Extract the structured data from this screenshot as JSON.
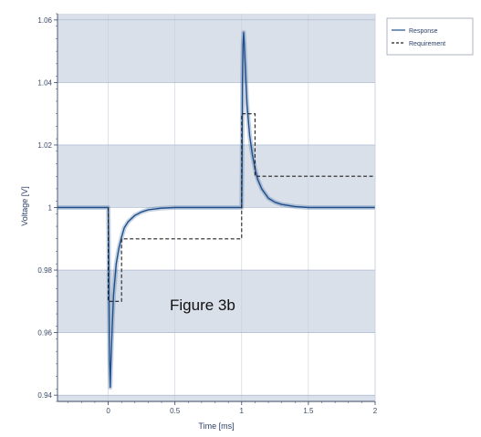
{
  "chart_data": {
    "type": "line",
    "xlabel": "Time [ms]",
    "ylabel": "Voltage [V]",
    "xlim": [
      -0.38,
      2.0
    ],
    "ylim": [
      0.938,
      1.062
    ],
    "x_ticks": [
      0,
      0.5,
      1,
      1.5,
      2
    ],
    "x_tick_labels": [
      "0",
      "0.5",
      "1",
      "1.5",
      "2"
    ],
    "y_ticks": [
      0.94,
      0.96,
      0.98,
      1,
      1.02,
      1.04,
      1.06
    ],
    "y_tick_labels": [
      "0.94",
      "0.96",
      "0.98",
      "1",
      "1.02",
      "1.04",
      "1.06"
    ],
    "shaded_bands": [
      [
        0.938,
        0.94
      ],
      [
        0.96,
        0.98
      ],
      [
        1.0,
        1.02
      ],
      [
        1.04,
        1.062
      ]
    ],
    "grid": true,
    "legend_position": "top-right",
    "annotation": "Figure 3b",
    "series": [
      {
        "name": "Response",
        "style": "solid",
        "color": "#1f4e8c",
        "x": [
          -0.38,
          -0.2,
          0.0,
          0.003,
          0.006,
          0.01,
          0.015,
          0.02,
          0.03,
          0.04,
          0.06,
          0.08,
          0.1,
          0.12,
          0.15,
          0.2,
          0.25,
          0.3,
          0.4,
          0.5,
          0.6,
          0.8,
          1.0,
          1.003,
          1.006,
          1.01,
          1.015,
          1.02,
          1.03,
          1.04,
          1.06,
          1.08,
          1.1,
          1.12,
          1.15,
          1.2,
          1.25,
          1.3,
          1.4,
          1.5,
          1.7,
          2.0
        ],
        "y": [
          1.0,
          1.0,
          1.0,
          0.99,
          0.97,
          0.951,
          0.9425,
          0.95,
          0.962,
          0.972,
          0.982,
          0.987,
          0.9905,
          0.9935,
          0.9955,
          0.9975,
          0.9986,
          0.9993,
          0.9998,
          1.0,
          1.0,
          1.0,
          1.0,
          1.015,
          1.04,
          1.052,
          1.056,
          1.052,
          1.042,
          1.033,
          1.023,
          1.017,
          1.0125,
          1.009,
          1.006,
          1.003,
          1.0017,
          1.001,
          1.0003,
          1.0,
          1.0,
          1.0
        ]
      },
      {
        "name": "Requirement",
        "style": "dashed",
        "color": "#222222",
        "x": [
          0.0,
          0.0,
          0.1,
          0.1,
          1.0,
          1.0,
          1.1,
          1.1,
          2.0
        ],
        "y": [
          1.0,
          0.97,
          0.97,
          0.99,
          0.99,
          1.03,
          1.03,
          1.01,
          1.01
        ]
      }
    ]
  }
}
